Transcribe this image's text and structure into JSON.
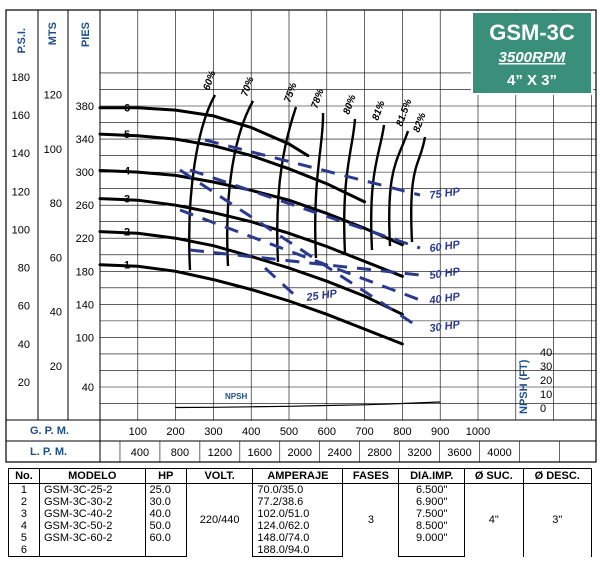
{
  "title_box": {
    "model": "GSM-3C",
    "rpm": "3500RPM",
    "size": "4” X 3”",
    "bg_color": "#3a8f7b"
  },
  "chart_data": {
    "type": "line",
    "title": "GSM-3C",
    "axes": {
      "gpm": {
        "label": "G. P. M.",
        "ticks": [
          100,
          200,
          300,
          400,
          500,
          600,
          700,
          800,
          900,
          1000
        ],
        "range": [
          0,
          1100
        ]
      },
      "lpm": {
        "label": "L. P. M.",
        "ticks": [
          400,
          800,
          1200,
          1600,
          2000,
          2400,
          2800,
          3200,
          3600,
          4000
        ]
      },
      "pies": {
        "label": "PIES",
        "ticks": [
          40,
          100,
          140,
          180,
          220,
          260,
          300,
          340,
          380
        ],
        "range": [
          0,
          420
        ]
      },
      "mts": {
        "label": "MTS",
        "ticks": [
          20,
          40,
          60,
          80,
          100,
          120
        ]
      },
      "psi": {
        "label": "P.S.I.",
        "ticks": [
          20,
          40,
          60,
          80,
          100,
          120,
          140,
          160,
          180
        ]
      },
      "npsh": {
        "label": "NPSH (FT)",
        "ticks": [
          0,
          10,
          20,
          30,
          40
        ]
      }
    },
    "series": [
      {
        "name": "1",
        "x": [
          0,
          100,
          200,
          300,
          400,
          500,
          600,
          700,
          800
        ],
        "y": [
          188,
          186,
          180,
          170,
          158,
          144,
          128,
          110,
          92
        ]
      },
      {
        "name": "2",
        "x": [
          0,
          100,
          200,
          300,
          400,
          500,
          600,
          700,
          800
        ],
        "y": [
          228,
          226,
          220,
          211,
          198,
          184,
          168,
          150,
          128
        ]
      },
      {
        "name": "3",
        "x": [
          0,
          100,
          200,
          300,
          400,
          500,
          600,
          700,
          800
        ],
        "y": [
          268,
          266,
          260,
          251,
          240,
          226,
          210,
          192,
          174
        ]
      },
      {
        "name": "4",
        "x": [
          0,
          100,
          200,
          300,
          400,
          500,
          600,
          700,
          800
        ],
        "y": [
          302,
          300,
          296,
          288,
          278,
          266,
          250,
          232,
          212
        ]
      },
      {
        "name": "5",
        "x": [
          0,
          100,
          200,
          300,
          400,
          500,
          600,
          700
        ],
        "y": [
          346,
          344,
          340,
          332,
          320,
          304,
          286,
          264
        ]
      },
      {
        "name": "6",
        "x": [
          0,
          100,
          200,
          300,
          400,
          500,
          550
        ],
        "y": [
          378,
          378,
          375,
          368,
          354,
          334,
          320
        ]
      },
      {
        "name": "NPSH",
        "x": [
          200,
          300,
          400,
          500,
          600,
          700,
          800,
          900
        ],
        "y": [
          18,
          19,
          21,
          23,
          26,
          29,
          34,
          40
        ]
      }
    ],
    "efficiency": [
      "60%",
      "70%",
      "75%",
      "78%",
      "80%",
      "81%",
      "81.5%",
      "82%"
    ],
    "power": [
      "25 HP",
      "30 HP",
      "40 HP",
      "50 HP",
      "60 HP",
      "75 HP"
    ],
    "series_labels": {
      "npsh": "NPSH"
    }
  },
  "table": {
    "headers": [
      "No.",
      "MODELO",
      "HP",
      "VOLT.",
      "AMPERAJE",
      "FASES",
      "DIA.IMP.",
      "Ø SUC.",
      "Ø DESC."
    ],
    "rows": [
      {
        "no": "1",
        "modelo": "GSM-3C-25-2",
        "hp": "25.0",
        "amp": "70.0/35.0",
        "dia": "6.500\""
      },
      {
        "no": "2",
        "modelo": "GSM-3C-30-2",
        "hp": "30.0",
        "amp": "77.2/38.6",
        "dia": "6.900\""
      },
      {
        "no": "3",
        "modelo": "GSM-3C-40-2",
        "hp": "40.0",
        "amp": "102.0/51.0",
        "dia": "7.500\""
      },
      {
        "no": "4",
        "modelo": "GSM-3C-50-2",
        "hp": "50.0",
        "amp": "124.0/62.0",
        "dia": "8.500\""
      },
      {
        "no": "5",
        "modelo": "GSM-3C-60-2",
        "hp": "60.0",
        "amp": "148.0/74.0",
        "dia": "9.000\""
      },
      {
        "no": "6",
        "modelo": "",
        "hp": "",
        "amp": "188.0/94.0",
        "dia": ""
      }
    ],
    "volt": "220/440",
    "fases": "3",
    "suc": "4\"",
    "desc": "3\""
  }
}
